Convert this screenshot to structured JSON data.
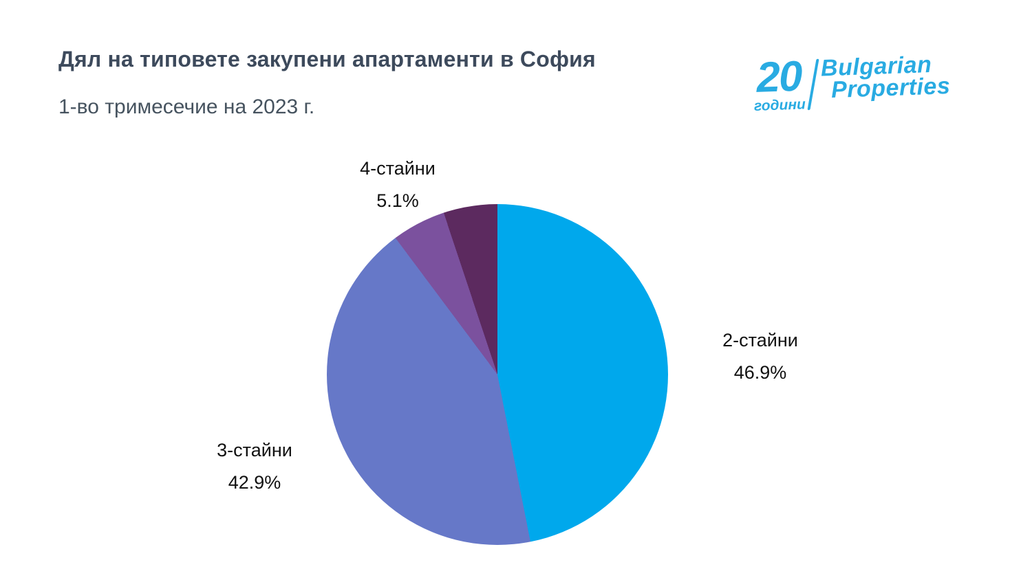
{
  "header": {
    "title": "Дял на типовете закупени апартаменти в София",
    "subtitle": "1-во тримесечие на 2023 г."
  },
  "logo": {
    "years_number": "20",
    "years_word": "години",
    "brand_line1": "Bulgarian",
    "brand_line2": "Properties",
    "color": "#29abe2"
  },
  "chart_data": {
    "type": "pie",
    "title": "Дял на типовете закупени апартаменти в София",
    "subtitle": "1-во тримесечие на 2023 г.",
    "start_angle_deg": 0,
    "direction": "clockwise",
    "legend": "none",
    "slices": [
      {
        "label": "2-стайни",
        "value": 46.9,
        "pct_label": "46.9%",
        "color": "#00a8ec"
      },
      {
        "label": "3-стайни",
        "value": 42.9,
        "pct_label": "42.9%",
        "color": "#6678c8"
      },
      {
        "label": "4-стайни",
        "value": 5.1,
        "pct_label": "5.1%",
        "color": "#7b519e"
      },
      {
        "label": "",
        "value": 5.1,
        "pct_label": "",
        "color": "#5c2a5f"
      }
    ]
  }
}
